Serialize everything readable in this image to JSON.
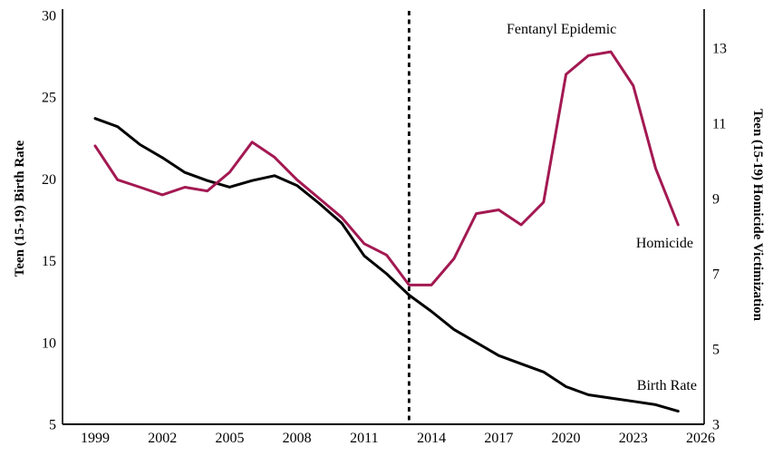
{
  "chart_data": {
    "type": "line",
    "title": "",
    "x": [
      1999,
      2000,
      2001,
      2002,
      2003,
      2004,
      2005,
      2006,
      2007,
      2008,
      2009,
      2010,
      2011,
      2012,
      2013,
      2014,
      2015,
      2016,
      2017,
      2018,
      2019,
      2020,
      2021,
      2022,
      2023,
      2024,
      2025
    ],
    "series": [
      {
        "name": "Birth Rate",
        "axis": "left",
        "color": "#000000",
        "values": [
          23.7,
          23.2,
          22.1,
          21.3,
          20.4,
          19.9,
          19.5,
          19.9,
          20.2,
          19.6,
          18.5,
          17.3,
          15.3,
          14.2,
          12.9,
          11.9,
          10.8,
          10.0,
          9.2,
          8.7,
          8.2,
          7.3,
          6.8,
          6.6,
          6.4,
          6.2,
          5.8
        ]
      },
      {
        "name": "Homicide",
        "axis": "right",
        "color": "#A31952",
        "values": [
          10.4,
          9.5,
          9.3,
          9.1,
          9.3,
          9.2,
          9.7,
          10.5,
          10.1,
          9.5,
          9.0,
          8.5,
          7.8,
          7.5,
          6.7,
          6.7,
          7.4,
          8.6,
          8.7,
          8.3,
          8.9,
          12.3,
          12.8,
          12.9,
          12.0,
          9.8,
          8.3
        ]
      }
    ],
    "left_axis": {
      "label": "Teen (15-19) Birth Rate",
      "ticks": [
        30,
        25,
        20,
        15,
        10,
        5
      ],
      "range": [
        5,
        30
      ]
    },
    "right_axis": {
      "label": "Teen (15-19) Homicide Victimization",
      "ticks": [
        13,
        11,
        9,
        7,
        5,
        3
      ],
      "range": [
        3,
        13
      ]
    },
    "x_axis": {
      "ticks": [
        1999,
        2002,
        2005,
        2008,
        2011,
        2014,
        2017,
        2020,
        2023,
        2026
      ],
      "range": [
        1999,
        2026
      ]
    },
    "reference_line": {
      "type": "vertical-dashed",
      "year": 2013,
      "color": "#000000"
    },
    "annotations": [
      {
        "id": "fentanyl-epidemic-annotation",
        "text": "Fentanyl Epidemic",
        "year": 2019.8,
        "axis": "left",
        "value": 28.9
      },
      {
        "id": "homicide-series-label",
        "text": "Homicide",
        "year": 2024.4,
        "axis": "right",
        "value": 7.7
      },
      {
        "id": "birth-rate-series-label",
        "text": "Birth Rate",
        "year": 2024.5,
        "axis": "left",
        "value": 7.1
      }
    ],
    "grid": false,
    "legend": "inline-labels"
  }
}
